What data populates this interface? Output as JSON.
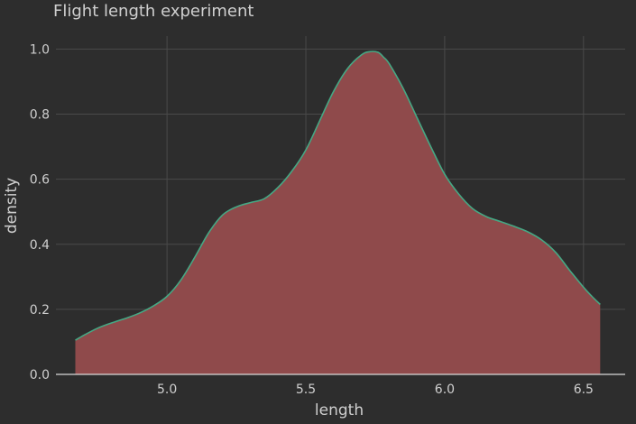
{
  "chart_data": {
    "type": "area",
    "title": "Flight length experiment",
    "xlabel": "length",
    "ylabel": "density",
    "xlim": [
      4.6,
      6.65
    ],
    "ylim": [
      0,
      1.04
    ],
    "xticks": [
      "5.0",
      "5.5",
      "6.0",
      "6.5"
    ],
    "yticks": [
      "0.0",
      "0.2",
      "0.4",
      "0.6",
      "0.8",
      "1.0"
    ],
    "grid": true,
    "series": [
      {
        "x": [
          4.67,
          4.7,
          4.75,
          4.8,
          4.85,
          4.9,
          4.95,
          5.0,
          5.05,
          5.1,
          5.15,
          5.2,
          5.25,
          5.3,
          5.35,
          5.4,
          5.45,
          5.5,
          5.55,
          5.6,
          5.65,
          5.7,
          5.73,
          5.76,
          5.78,
          5.8,
          5.85,
          5.9,
          5.95,
          6.0,
          6.05,
          6.1,
          6.15,
          6.2,
          6.25,
          6.3,
          6.35,
          6.4,
          6.45,
          6.5,
          6.53,
          6.56
        ],
        "values": [
          0.105,
          0.12,
          0.142,
          0.158,
          0.172,
          0.188,
          0.21,
          0.24,
          0.29,
          0.36,
          0.435,
          0.49,
          0.515,
          0.528,
          0.54,
          0.575,
          0.625,
          0.69,
          0.78,
          0.87,
          0.94,
          0.982,
          0.992,
          0.99,
          0.975,
          0.955,
          0.88,
          0.79,
          0.7,
          0.615,
          0.555,
          0.51,
          0.485,
          0.47,
          0.455,
          0.438,
          0.413,
          0.375,
          0.32,
          0.268,
          0.24,
          0.215
        ]
      }
    ],
    "colors": {
      "fill": "#8f4a4b",
      "line": "#45a884",
      "background": "#2d2d2d",
      "grid": "#4a4a4a"
    }
  }
}
